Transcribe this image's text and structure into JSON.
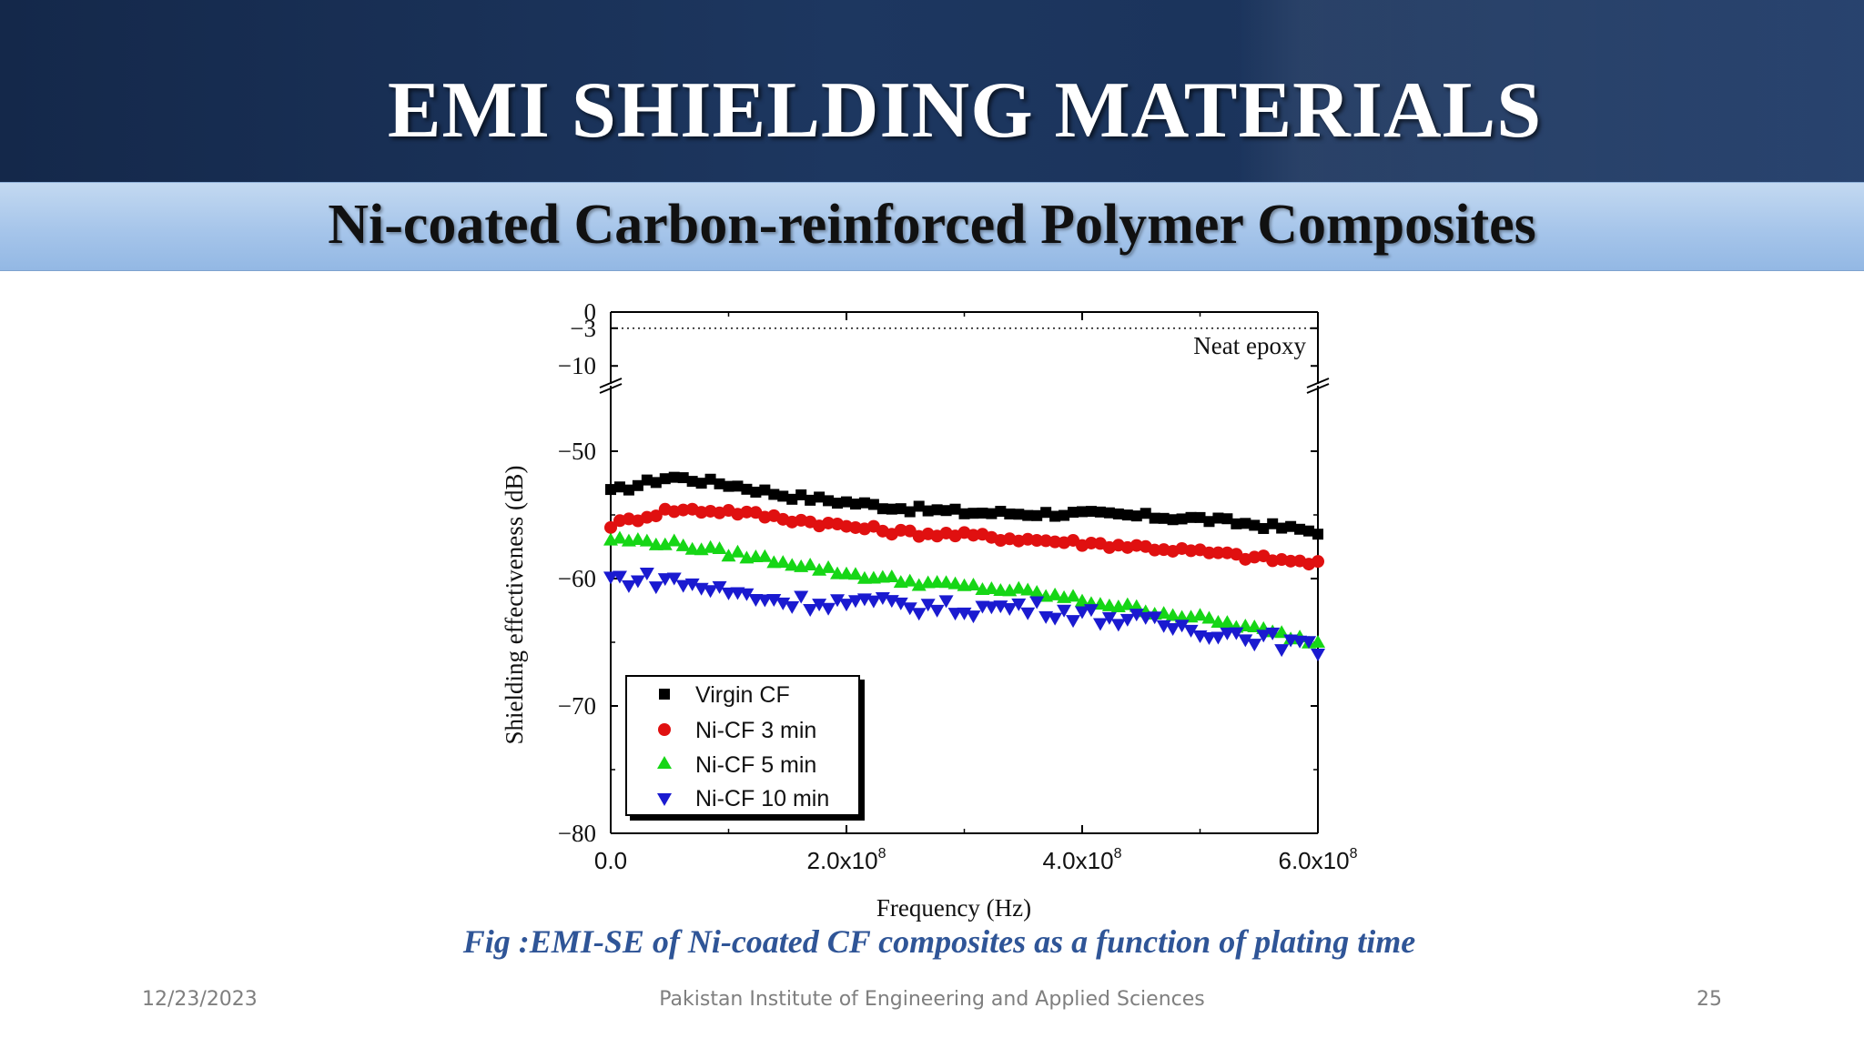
{
  "slide": {
    "title": "EMI SHIELDING MATERIALS",
    "subtitle": "Ni-coated Carbon-reinforced Polymer Composites",
    "caption": "Fig  :EMI-SE of Ni-coated CF composites as a function of plating time",
    "footer": {
      "date": "12/23/2023",
      "organization": "Pakistan Institute of Engineering and Applied Sciences",
      "page": "25"
    }
  },
  "chart_data": {
    "type": "scatter",
    "title": "",
    "xlabel": "Frequency (Hz)",
    "ylabel": "Shielding effectiveness (dB)",
    "xlim": [
      0,
      600000000
    ],
    "ylim_lower": [
      -80,
      -45
    ],
    "ylim_upper": [
      -13,
      0
    ],
    "axis_break": "between -10 and -45 dB",
    "x_ticks": [
      {
        "value": 0,
        "mantissa": "0.0",
        "exponent": ""
      },
      {
        "value": 200000000,
        "mantissa": "2.0x10",
        "exponent": "8"
      },
      {
        "value": 400000000,
        "mantissa": "4.0x10",
        "exponent": "8"
      },
      {
        "value": 600000000,
        "mantissa": "6.0x10",
        "exponent": "8"
      }
    ],
    "y_ticks": [
      {
        "value": 0,
        "label": "0"
      },
      {
        "value": -3,
        "label": "−3"
      },
      {
        "value": -10,
        "label": "−10"
      },
      {
        "value": -50,
        "label": "−50"
      },
      {
        "value": -60,
        "label": "−60"
      },
      {
        "value": -70,
        "label": "−70"
      },
      {
        "value": -80,
        "label": "−80"
      }
    ],
    "reference_line": {
      "label": "Neat epoxy",
      "value": -3
    },
    "legend_position": "bottom-left",
    "grid": false,
    "series": [
      {
        "name": "Virgin CF",
        "marker": "square",
        "color": "#000000",
        "points": [
          [
            0,
            -53.2
          ],
          [
            50000000,
            -52.0
          ],
          [
            100000000,
            -52.6
          ],
          [
            150000000,
            -53.5
          ],
          [
            200000000,
            -54.0
          ],
          [
            250000000,
            -54.5
          ],
          [
            300000000,
            -54.8
          ],
          [
            350000000,
            -54.9
          ],
          [
            400000000,
            -54.9
          ],
          [
            450000000,
            -55.1
          ],
          [
            500000000,
            -55.3
          ],
          [
            550000000,
            -55.8
          ],
          [
            600000000,
            -56.3
          ]
        ]
      },
      {
        "name": "Ni-CF 3 min",
        "marker": "circle",
        "color": "#e01010",
        "points": [
          [
            0,
            -55.8
          ],
          [
            50000000,
            -54.6
          ],
          [
            100000000,
            -54.7
          ],
          [
            150000000,
            -55.3
          ],
          [
            200000000,
            -55.9
          ],
          [
            250000000,
            -56.4
          ],
          [
            300000000,
            -56.6
          ],
          [
            350000000,
            -56.9
          ],
          [
            400000000,
            -57.2
          ],
          [
            450000000,
            -57.5
          ],
          [
            500000000,
            -57.9
          ],
          [
            550000000,
            -58.4
          ],
          [
            600000000,
            -58.8
          ]
        ]
      },
      {
        "name": "Ni-CF 5 min",
        "marker": "triangle-up",
        "color": "#16d616",
        "points": [
          [
            0,
            -56.9
          ],
          [
            50000000,
            -57.2
          ],
          [
            100000000,
            -58.0
          ],
          [
            150000000,
            -58.7
          ],
          [
            200000000,
            -59.6
          ],
          [
            250000000,
            -60.2
          ],
          [
            300000000,
            -60.6
          ],
          [
            350000000,
            -61.0
          ],
          [
            400000000,
            -61.7
          ],
          [
            450000000,
            -62.4
          ],
          [
            500000000,
            -63.1
          ],
          [
            550000000,
            -64.0
          ],
          [
            600000000,
            -65.0
          ]
        ]
      },
      {
        "name": "Ni-CF 10 min",
        "marker": "triangle-down",
        "color": "#1a1ad0",
        "points": [
          [
            0,
            -60.0
          ],
          [
            50000000,
            -60.1
          ],
          [
            100000000,
            -61.1
          ],
          [
            150000000,
            -61.8
          ],
          [
            200000000,
            -61.9
          ],
          [
            250000000,
            -62.1
          ],
          [
            300000000,
            -62.4
          ],
          [
            350000000,
            -62.2
          ],
          [
            400000000,
            -62.8
          ],
          [
            450000000,
            -63.4
          ],
          [
            500000000,
            -64.0
          ],
          [
            550000000,
            -64.6
          ],
          [
            600000000,
            -65.6
          ]
        ]
      }
    ]
  }
}
